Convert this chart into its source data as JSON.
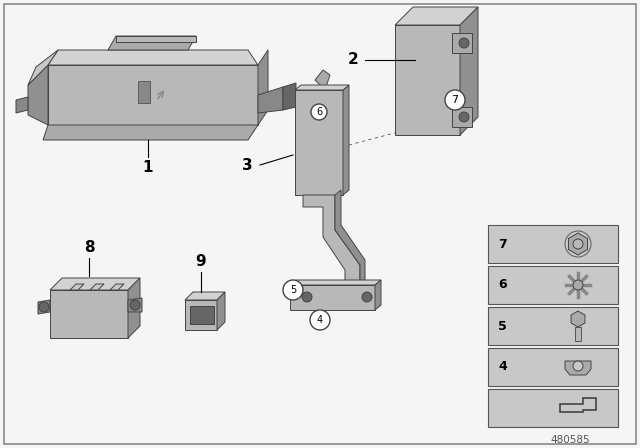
{
  "background_color": "#f5f5f5",
  "border_color": "#888888",
  "diagram_id": "480585",
  "fig_width": 6.4,
  "fig_height": 4.48,
  "dpi": 100,
  "colors": {
    "light_gray": "#c8c8c8",
    "mid_gray": "#aaaaaa",
    "dark_gray": "#888888",
    "darker_gray": "#666666",
    "edge": "#444444",
    "white": "#ffffff",
    "very_light": "#dedede",
    "top_face": "#d2d2d2",
    "side_face": "#909090",
    "front_face": "#b8b8b8"
  }
}
